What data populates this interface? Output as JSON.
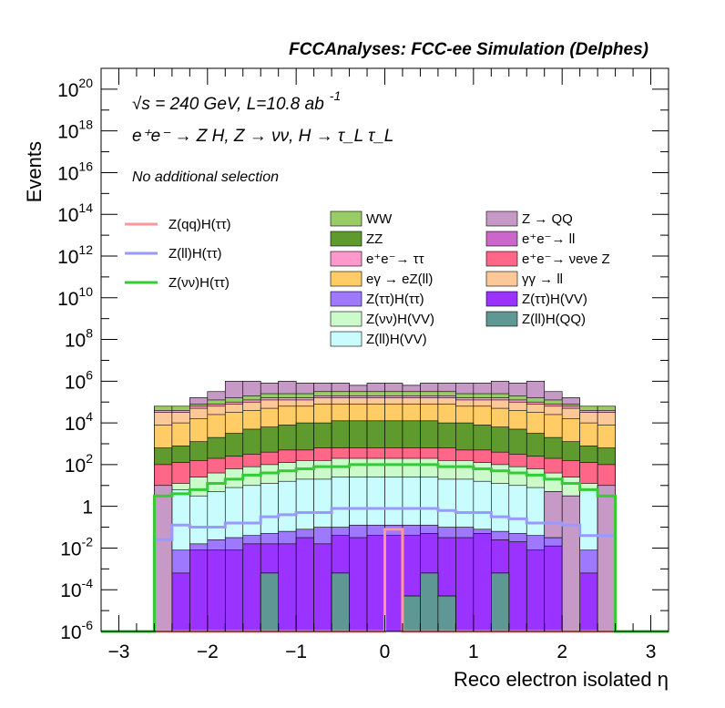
{
  "chart_data": {
    "type": "area",
    "title": "FCCAnalyses: FCC-ee Simulation (Delphes)",
    "annotations": {
      "energy": "√s = 240 GeV, L=10.8 ab",
      "energy_sup": "-1",
      "process": "e⁺e⁻ → Z H, Z → νν, H → τ_L τ_L",
      "selection": "No additional selection"
    },
    "xlabel": "Reco electron isolated η",
    "ylabel": "Events",
    "xlim": [
      -3.2,
      3.2
    ],
    "ylim_log10": [
      -6,
      21
    ],
    "y_scale": "log",
    "x_ticks": [
      "−3",
      "−2",
      "−1",
      "0",
      "1",
      "2",
      "3"
    ],
    "x_tick_values": [
      -3,
      -2,
      -1,
      0,
      1,
      2,
      3
    ],
    "y_ticks": [
      {
        "base": "10",
        "exp": "20",
        "log": 20
      },
      {
        "base": "10",
        "exp": "18",
        "log": 18
      },
      {
        "base": "10",
        "exp": "16",
        "log": 16
      },
      {
        "base": "10",
        "exp": "14",
        "log": 14
      },
      {
        "base": "10",
        "exp": "12",
        "log": 12
      },
      {
        "base": "10",
        "exp": "10",
        "log": 10
      },
      {
        "base": "10",
        "exp": "8",
        "log": 8
      },
      {
        "base": "10",
        "exp": "6",
        "log": 6
      },
      {
        "base": "10",
        "exp": "4",
        "log": 4
      },
      {
        "base": "10",
        "exp": "2",
        "log": 2
      },
      {
        "base": "1",
        "exp": "",
        "log": 0
      },
      {
        "base": "10",
        "exp": "-2",
        "log": -2
      },
      {
        "base": "10",
        "exp": "-4",
        "log": -4
      },
      {
        "base": "10",
        "exp": "-6",
        "log": -6
      }
    ],
    "bin_edges": [
      -2.6,
      -2.4,
      -2.2,
      -2.0,
      -1.8,
      -1.6,
      -1.4,
      -1.2,
      -1.0,
      -0.8,
      -0.6,
      -0.4,
      -0.2,
      0.0,
      0.2,
      0.4,
      0.6,
      0.8,
      1.0,
      1.2,
      1.4,
      1.6,
      1.8,
      2.0,
      2.2,
      2.4,
      2.6
    ],
    "stack_bands_log10": [
      {
        "name": "Z(ll)H(QQ)",
        "color": "#5f9795",
        "top": [
          -6,
          -6,
          -6,
          -6,
          -6,
          -6,
          -3.2,
          -6,
          -6,
          -6,
          -3.2,
          -6,
          -6,
          -6,
          -4.3,
          -3.2,
          -4.3,
          -6,
          -6,
          -3.2,
          -6,
          -6,
          -6,
          -6,
          -6,
          -6
        ]
      },
      {
        "name": "Z(ττ)H(VV)",
        "color": "#9a33ff",
        "top": [
          -6,
          -3.2,
          -2.1,
          -2.1,
          -2.1,
          -1.8,
          -1.8,
          -1.8,
          -1.5,
          -1.8,
          -1.4,
          -1.5,
          -1.4,
          -1.4,
          -1.4,
          -1.3,
          -1.5,
          -1.5,
          -1.3,
          -1.6,
          -1.7,
          -2.1,
          -1.9,
          -2.0,
          -3.2,
          -6
        ]
      },
      {
        "name": "Z(ττ)H(ττ)",
        "color": "#9e79ff",
        "top": [
          -3.2,
          -2.1,
          -1.8,
          -1.6,
          -1.5,
          -1.4,
          -1.3,
          -1.2,
          -1.1,
          -1.0,
          -1.0,
          -0.9,
          -0.9,
          -0.9,
          -0.9,
          -0.9,
          -1.0,
          -1.0,
          -1.1,
          -1.2,
          -1.3,
          -1.4,
          -1.5,
          -1.6,
          -2.1,
          -3.2
        ]
      },
      {
        "name": "Z(ll)H(VV)",
        "color": "#c9fdfd",
        "top": [
          0.9,
          0.8,
          0.5,
          0.7,
          0.9,
          1.0,
          1.1,
          1.2,
          1.3,
          1.3,
          1.4,
          1.4,
          1.4,
          1.4,
          1.4,
          1.4,
          1.3,
          1.3,
          1.2,
          1.1,
          1.0,
          0.9,
          0.7,
          0.5,
          0.8,
          0.9
        ]
      },
      {
        "name": "Z(νν)H(VV)",
        "color": "#cbfacb",
        "top": [
          1.0,
          1.1,
          1.4,
          1.6,
          1.8,
          1.9,
          2.0,
          2.1,
          2.2,
          2.2,
          2.3,
          2.3,
          2.3,
          2.3,
          2.3,
          2.3,
          2.2,
          2.2,
          2.1,
          2.0,
          1.9,
          1.8,
          1.6,
          1.4,
          1.1,
          1.0
        ]
      },
      {
        "name": "e⁺e⁻→ νeνe Z",
        "color": "#ff6688",
        "top": [
          2.0,
          2.1,
          2.2,
          2.3,
          2.4,
          2.5,
          2.6,
          2.7,
          2.7,
          2.8,
          2.8,
          2.8,
          2.8,
          2.8,
          2.8,
          2.8,
          2.8,
          2.7,
          2.7,
          2.6,
          2.5,
          2.4,
          2.3,
          2.2,
          2.1,
          2.0
        ]
      },
      {
        "name": "ZZ",
        "color": "#5e9a2e",
        "top": [
          2.8,
          2.9,
          3.1,
          3.3,
          3.5,
          3.7,
          3.8,
          3.9,
          4.0,
          4.0,
          4.1,
          4.1,
          4.1,
          4.1,
          4.1,
          4.1,
          4.0,
          4.0,
          3.9,
          3.8,
          3.7,
          3.5,
          3.3,
          3.1,
          2.9,
          2.8
        ]
      },
      {
        "name": "eγ → eZ(ll)",
        "color": "#ffcc66",
        "top": [
          3.9,
          4.0,
          4.2,
          4.4,
          4.5,
          4.6,
          4.7,
          4.8,
          4.8,
          4.9,
          4.9,
          4.9,
          4.9,
          4.9,
          4.9,
          4.9,
          4.9,
          4.8,
          4.8,
          4.7,
          4.6,
          4.5,
          4.4,
          4.2,
          4.0,
          3.9
        ]
      },
      {
        "name": "γγ → ll",
        "color": "#fcc898",
        "top": [
          4.5,
          4.5,
          4.7,
          4.8,
          4.9,
          5.0,
          5.1,
          5.1,
          5.1,
          5.2,
          5.2,
          5.2,
          5.2,
          5.2,
          5.2,
          5.2,
          5.2,
          5.1,
          5.1,
          5.1,
          5.0,
          4.9,
          4.8,
          4.7,
          4.5,
          4.5
        ]
      },
      {
        "name": "e⁺e⁻→ ττ",
        "color": "#ff99cc",
        "top": [
          4.6,
          4.6,
          4.8,
          4.9,
          5.0,
          5.1,
          5.2,
          5.2,
          5.2,
          5.3,
          5.3,
          5.3,
          5.3,
          5.3,
          5.3,
          5.3,
          5.3,
          5.2,
          5.2,
          5.2,
          5.1,
          5.0,
          4.9,
          4.8,
          4.6,
          4.6
        ]
      },
      {
        "name": "WW",
        "color": "#99cc66",
        "top": [
          4.8,
          4.8,
          4.9,
          5.1,
          5.2,
          5.3,
          5.4,
          5.4,
          5.4,
          5.5,
          5.5,
          5.5,
          5.5,
          5.5,
          5.5,
          5.5,
          5.5,
          5.4,
          5.4,
          5.4,
          5.3,
          5.2,
          5.1,
          4.9,
          4.8,
          4.8
        ]
      },
      {
        "name": "Z → QQ",
        "color": "#c799c6",
        "top": [
          4.8,
          4.8,
          5.2,
          5.5,
          6.0,
          6.0,
          5.9,
          6.0,
          5.9,
          5.9,
          5.9,
          5.8,
          5.9,
          5.9,
          5.8,
          5.9,
          5.9,
          5.9,
          5.9,
          6.0,
          5.9,
          6.0,
          5.5,
          5.2,
          4.8,
          4.8
        ]
      },
      {
        "name": "e⁺e⁻→ ll",
        "color": "#cc66cc",
        "top": [
          4.8,
          4.8,
          5.2,
          5.5,
          6.0,
          6.0,
          5.9,
          6.0,
          5.9,
          5.9,
          5.9,
          5.8,
          5.9,
          5.9,
          5.8,
          5.9,
          5.9,
          5.9,
          5.9,
          6.0,
          5.9,
          6.0,
          5.5,
          5.2,
          4.8,
          4.8
        ]
      }
    ],
    "zqq_low_bins": [
      {
        "bin": 0,
        "bottom": -6,
        "top": 1.0
      },
      {
        "bin": 25,
        "bottom": -6,
        "top": 1.0
      },
      {
        "bin": 22,
        "bottom": -1.5,
        "top": 0.7
      },
      {
        "bin": 23,
        "bottom": -6,
        "top": 0.5
      }
    ],
    "lines_log10": [
      {
        "name": "Z(qq)H(ττ)",
        "color": "#ff9999",
        "values": [
          -6,
          -6,
          -6,
          -6,
          -6,
          -6,
          -6,
          -6,
          -6,
          -6,
          -6,
          -6,
          -6,
          -1.1,
          -6,
          -6,
          -6,
          -6,
          -6,
          -6,
          -6,
          -6,
          -6,
          -6,
          -6,
          -6
        ]
      },
      {
        "name": "Z(ll)H(ττ)",
        "color": "#9999ff",
        "values": [
          -1.6,
          -0.9,
          -1.0,
          -1.0,
          -0.8,
          -0.8,
          -0.5,
          -0.4,
          -0.3,
          -0.3,
          -0.1,
          -0.1,
          -0.1,
          -0.1,
          -0.1,
          -0.1,
          -0.2,
          -0.3,
          -0.3,
          -0.5,
          -0.6,
          -0.8,
          -0.8,
          -0.9,
          -1.4,
          -1.4
        ]
      },
      {
        "name": "Z(νν)H(ττ)",
        "color": "#33cc33",
        "values": [
          0.5,
          0.6,
          0.8,
          1.1,
          1.3,
          1.5,
          1.6,
          1.7,
          1.8,
          1.9,
          1.9,
          2.0,
          2.0,
          2.0,
          2.0,
          2.0,
          1.9,
          1.9,
          1.8,
          1.7,
          1.6,
          1.5,
          1.3,
          1.1,
          0.8,
          0.5
        ]
      }
    ],
    "legend_lines": [
      {
        "label": "Z(qq)H(ττ)",
        "color": "#ff9999"
      },
      {
        "label": "Z(ll)H(ττ)",
        "color": "#9999ff"
      },
      {
        "label": "Z(νν)H(ττ)",
        "color": "#33cc33"
      }
    ],
    "legend_fills": [
      {
        "label": "WW",
        "color": "#99cc66"
      },
      {
        "label": "Z → QQ",
        "color": "#c799c6"
      },
      {
        "label": "ZZ",
        "color": "#5e9a2e"
      },
      {
        "label": "e⁺e⁻→ ll",
        "color": "#cc66cc"
      },
      {
        "label": "e⁺e⁻→ ττ",
        "color": "#ff99cc"
      },
      {
        "label": "e⁺e⁻→ νeνe Z",
        "color": "#ff6688"
      },
      {
        "label": "eγ → eZ(ll)",
        "color": "#ffcc66"
      },
      {
        "label": "γγ → ll",
        "color": "#fcc898"
      },
      {
        "label": "Z(ττ)H(ττ)",
        "color": "#9e79ff"
      },
      {
        "label": "Z(ττ)H(VV)",
        "color": "#9a33ff"
      },
      {
        "label": "Z(νν)H(VV)",
        "color": "#cbfacb"
      },
      {
        "label": "Z(ll)H(QQ)",
        "color": "#5f9795"
      },
      {
        "label": "Z(ll)H(VV)",
        "color": "#c9fdfd"
      }
    ],
    "legend_placement": "top",
    "grid": false
  }
}
